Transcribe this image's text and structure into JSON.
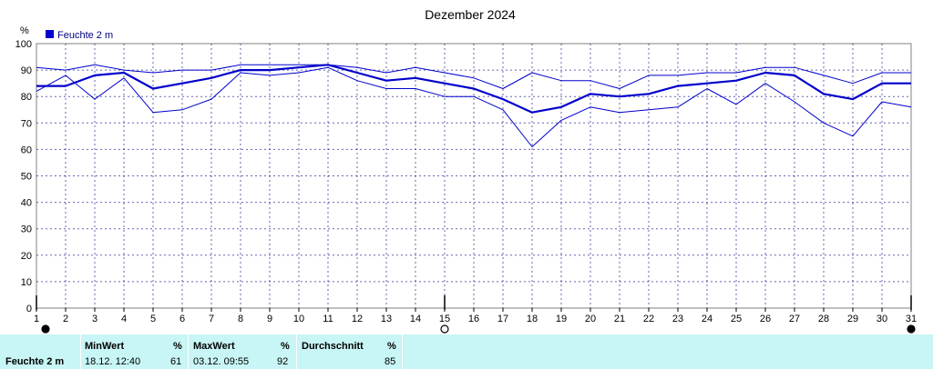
{
  "chart_data": {
    "type": "line",
    "title": "Dezember 2024",
    "ylabel": "%",
    "ylim": [
      0,
      100
    ],
    "yticks": [
      0,
      10,
      20,
      30,
      40,
      50,
      60,
      70,
      80,
      90,
      100
    ],
    "x": [
      1,
      2,
      3,
      4,
      5,
      6,
      7,
      8,
      9,
      10,
      11,
      12,
      13,
      14,
      15,
      16,
      17,
      18,
      19,
      20,
      21,
      22,
      23,
      24,
      25,
      26,
      27,
      28,
      29,
      30,
      31
    ],
    "legend": "top-left",
    "grid": true,
    "series": [
      {
        "name": "Feuchte  2 m",
        "color": "#0000cc",
        "role": "mean",
        "values": [
          84,
          84,
          88,
          89,
          83,
          85,
          87,
          90,
          90,
          91,
          92,
          89,
          86,
          87,
          85,
          83,
          79,
          74,
          76,
          81,
          80,
          81,
          84,
          85,
          86,
          89,
          88,
          81,
          79,
          85,
          85
        ]
      },
      {
        "color": "#0000cc",
        "role": "max",
        "values": [
          91,
          90,
          92,
          90,
          89,
          90,
          90,
          92,
          92,
          92,
          92,
          91,
          89,
          91,
          89,
          87,
          83,
          89,
          86,
          86,
          83,
          88,
          88,
          89,
          89,
          91,
          91,
          88,
          85,
          89,
          89
        ]
      },
      {
        "color": "#0000cc",
        "role": "min",
        "values": [
          82,
          88,
          79,
          87,
          74,
          75,
          79,
          89,
          88,
          89,
          91,
          86,
          83,
          83,
          80,
          80,
          75,
          61,
          71,
          76,
          74,
          75,
          76,
          83,
          77,
          85,
          78,
          70,
          65,
          78,
          76
        ]
      }
    ],
    "moon_markers": [
      {
        "day": 1,
        "phase": "new-moon"
      },
      {
        "day": 15,
        "phase": "full-moon"
      },
      {
        "day": 31,
        "phase": "new-moon"
      }
    ]
  },
  "stats": {
    "sensor_label": "Feuchte  2 m",
    "min": {
      "header": "MinWert",
      "unit": "%",
      "time": "18.12.  12:40",
      "value": "61"
    },
    "max": {
      "header": "MaxWert",
      "unit": "%",
      "time": "03.12.  09:55",
      "value": "92"
    },
    "avg": {
      "header": "Durchschnitt",
      "unit": "%",
      "value": "85"
    }
  },
  "colors": {
    "series": "#0000cc",
    "statbar": "#c8f5f5",
    "grid": "#000080"
  }
}
